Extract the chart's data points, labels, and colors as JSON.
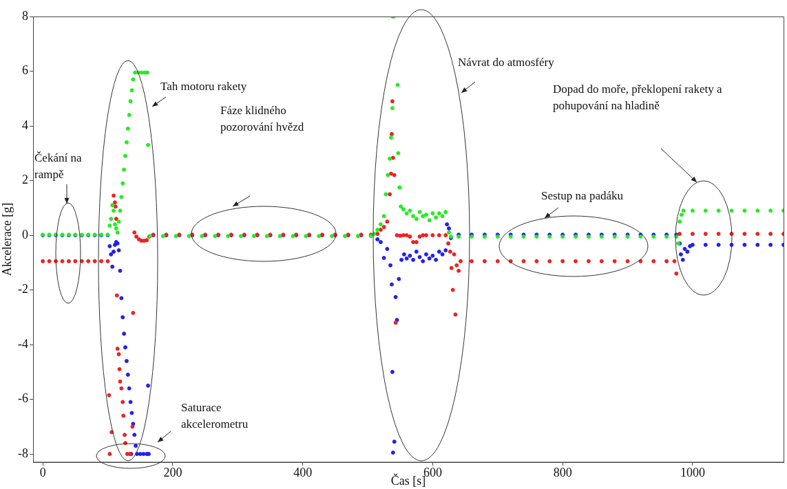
{
  "chart_data": {
    "type": "scatter",
    "xlabel": "Čas [s]",
    "ylabel": "Akcelerace [g]",
    "xlim": [
      -15,
      1140
    ],
    "ylim": [
      -8.3,
      8
    ],
    "xticks": [
      0,
      200,
      400,
      600,
      800,
      1000
    ],
    "yticks": [
      -8,
      -6,
      -4,
      -2,
      0,
      2,
      4,
      6,
      8
    ],
    "grid": false,
    "legend": false,
    "marker": "circle",
    "series": [
      {
        "color": "#22ee22",
        "x": [
          0,
          10,
          20,
          30,
          40,
          50,
          60,
          70,
          80,
          90,
          100,
          103,
          105,
          107,
          109,
          111,
          113,
          115,
          117,
          119,
          121,
          123,
          125,
          127,
          129,
          131,
          133,
          135,
          137,
          139,
          142,
          147,
          152,
          157,
          161,
          162,
          165,
          185,
          205,
          225,
          245,
          265,
          285,
          305,
          325,
          345,
          365,
          385,
          405,
          425,
          445,
          465,
          485,
          505,
          510,
          515,
          520,
          525,
          528,
          531,
          534,
          536,
          538,
          538.5,
          540,
          546,
          547,
          549,
          551,
          555,
          560,
          565,
          570,
          575,
          580,
          585,
          590,
          595,
          600,
          605,
          610,
          615,
          620,
          625,
          628,
          640,
          660,
          680,
          700,
          720,
          740,
          760,
          780,
          800,
          820,
          840,
          860,
          880,
          900,
          920,
          940,
          960,
          975,
          978,
          980,
          983,
          986,
          1000,
          1020,
          1040,
          1060,
          1080,
          1100,
          1120,
          1140
        ],
        "values": [
          0.02,
          0.02,
          0.02,
          0.02,
          0.02,
          0.02,
          0.02,
          0.02,
          0.02,
          0.02,
          0.02,
          0.35,
          0.6,
          1.1,
          0.9,
          0.4,
          0.25,
          0.1,
          0.5,
          0.9,
          1.4,
          1.9,
          2.4,
          2.9,
          3.4,
          3.9,
          4.4,
          4.9,
          5.3,
          5.7,
          5.95,
          5.95,
          5.95,
          5.95,
          5.95,
          3.3,
          -0.03,
          -0.03,
          -0.03,
          -0.03,
          -0.03,
          -0.03,
          -0.03,
          -0.03,
          -0.03,
          -0.03,
          -0.03,
          -0.03,
          -0.03,
          -0.03,
          -0.03,
          -0.03,
          -0.03,
          -0.03,
          0.05,
          0.2,
          0.4,
          0.7,
          1.5,
          2.2,
          2.8,
          3.57,
          4.65,
          8,
          8,
          5.5,
          3.0,
          1.75,
          1.05,
          0.95,
          0.8,
          0.9,
          0.7,
          0.6,
          0.85,
          0.7,
          0.75,
          0.55,
          0.8,
          0.65,
          0.8,
          0.7,
          0.85,
          0.1,
          -0.05,
          -0.05,
          -0.05,
          -0.05,
          -0.05,
          -0.05,
          -0.05,
          -0.05,
          -0.05,
          -0.05,
          -0.05,
          -0.05,
          -0.05,
          -0.05,
          -0.05,
          -0.05,
          -0.05,
          -0.05,
          -0.05,
          -0.3,
          0.5,
          0.75,
          0.9,
          0.9,
          0.9,
          0.9,
          0.9,
          0.9,
          0.9,
          0.9,
          0.9
        ]
      },
      {
        "color": "#ee2222",
        "x": [
          0,
          10,
          20,
          30,
          40,
          50,
          60,
          70,
          80,
          90,
          100,
          102,
          103,
          106,
          109,
          111,
          112,
          113,
          114,
          115,
          117,
          118,
          119,
          121,
          123,
          124,
          126,
          127,
          130,
          134,
          138,
          139,
          141,
          144,
          148,
          152,
          156,
          160,
          164,
          170,
          190,
          210,
          230,
          250,
          270,
          290,
          310,
          330,
          350,
          370,
          390,
          410,
          430,
          450,
          470,
          490,
          505,
          515,
          520,
          525,
          530,
          534,
          536,
          537,
          538,
          539,
          541,
          543,
          545,
          550,
          555,
          560,
          565,
          570,
          575,
          580,
          585,
          590,
          600,
          610,
          620,
          624,
          627,
          629,
          631,
          633,
          635,
          637,
          640,
          643,
          660,
          680,
          700,
          720,
          740,
          760,
          780,
          800,
          820,
          840,
          860,
          880,
          900,
          920,
          940,
          960,
          972,
          975,
          980,
          1000,
          1020,
          1040,
          1060,
          1080,
          1100,
          1120,
          1140
        ],
        "values": [
          -0.95,
          -0.95,
          -0.95,
          -0.95,
          -0.95,
          -0.95,
          -0.95,
          -0.95,
          -0.95,
          -0.95,
          -0.95,
          -5.85,
          -8.0,
          -7.2,
          1.45,
          1.2,
          1.05,
          0.6,
          -2.2,
          -4.15,
          -4.35,
          -4.9,
          -5.35,
          -5.6,
          -6.1,
          -6.6,
          -7.3,
          -7.6,
          -8.0,
          -8.0,
          -7.0,
          -2.84,
          0.1,
          -0.05,
          -0.15,
          -0.2,
          -0.2,
          -0.18,
          -0.05,
          0.02,
          0.02,
          0.02,
          0.02,
          0.02,
          0.02,
          0.02,
          0.02,
          0.02,
          0.02,
          0.02,
          0.02,
          0.02,
          0.02,
          0.02,
          0.02,
          0.02,
          0.02,
          0.05,
          0.2,
          0.3,
          0.5,
          1.5,
          2.25,
          3.7,
          4.9,
          2.83,
          2.2,
          -3.2,
          0.0,
          -0.02,
          0.0,
          0.0,
          -0.05,
          -0.25,
          -0.25,
          -0.05,
          0.0,
          0.0,
          0.0,
          0.0,
          0.0,
          -0.3,
          -0.6,
          -1.2,
          -2.0,
          -0.7,
          -2.9,
          -1.1,
          -1.3,
          -0.95,
          -0.95,
          -0.95,
          -0.95,
          -0.95,
          -0.95,
          -0.95,
          -0.95,
          -0.95,
          -0.95,
          -0.95,
          -0.95,
          -0.95,
          -0.95,
          -0.95,
          -0.95,
          -0.95,
          -0.95,
          -1.4,
          0.05,
          0.05,
          0.05,
          0.05,
          0.05,
          0.05,
          0.05,
          0.05,
          0.05
        ]
      },
      {
        "color": "#2222ee",
        "x": [
          0,
          10,
          20,
          30,
          40,
          50,
          60,
          70,
          80,
          90,
          100,
          103,
          105,
          107,
          109,
          111,
          113,
          115,
          117,
          119,
          121,
          123,
          125,
          127,
          129,
          131,
          133,
          135,
          136,
          137,
          139,
          141,
          143,
          145,
          150,
          155,
          160,
          162,
          163,
          170,
          190,
          210,
          230,
          250,
          270,
          290,
          310,
          330,
          350,
          370,
          390,
          410,
          430,
          450,
          470,
          490,
          505,
          515,
          520,
          525,
          530,
          535,
          537,
          538,
          539,
          541,
          543,
          545,
          548,
          552,
          556,
          560,
          565,
          570,
          575,
          580,
          585,
          590,
          595,
          600,
          605,
          610,
          615,
          620,
          622,
          625,
          628,
          640,
          660,
          680,
          700,
          720,
          740,
          760,
          780,
          800,
          820,
          840,
          860,
          880,
          900,
          920,
          940,
          960,
          975,
          980,
          982,
          985,
          988,
          992,
          996,
          1000,
          1020,
          1040,
          1060,
          1080,
          1100,
          1120,
          1140
        ],
        "values": [
          0,
          0,
          0,
          0,
          0,
          0,
          0,
          0,
          0,
          0,
          0,
          -0.4,
          -0.7,
          -1.15,
          -0.6,
          -0.35,
          -0.25,
          -0.3,
          -0.55,
          -1.3,
          -2.3,
          -3.0,
          -3.6,
          -4.1,
          -4.6,
          -5.1,
          -5.6,
          -6.1,
          -8,
          -6.5,
          -6.9,
          -7.3,
          -7.7,
          -8,
          -8,
          -8,
          -8,
          -5.5,
          -8,
          0,
          0,
          0,
          0,
          0,
          0,
          0,
          0,
          0,
          0,
          0,
          0,
          0,
          0,
          0,
          0,
          0,
          0,
          -0.15,
          -0.25,
          -0.83,
          -0.5,
          -1.1,
          -1.8,
          -5.0,
          -7.95,
          -7.55,
          -2.26,
          -3.1,
          -1.6,
          -0.9,
          -0.7,
          -0.85,
          -0.75,
          -0.9,
          -0.6,
          -0.8,
          -0.95,
          -0.7,
          -0.85,
          -0.75,
          -0.9,
          -0.6,
          -0.7,
          -0.55,
          0.4,
          0.25,
          -0.1,
          0.02,
          0.02,
          0.02,
          0.02,
          0.02,
          0.02,
          0.02,
          0.02,
          0.02,
          0.02,
          0.02,
          0.02,
          0.02,
          0.02,
          0.02,
          0.02,
          0.02,
          0.02,
          -0.3,
          -0.7,
          -0.9,
          -0.5,
          -0.6,
          -0.4,
          -0.35,
          -0.35,
          -0.35,
          -0.35,
          -0.35,
          -0.35,
          -0.35,
          -0.35
        ]
      }
    ],
    "annotations": [
      "Čekání na\nrampě",
      "Tah motoru rakety",
      "Fáze klidného\npozorování hvězd",
      "Návrat do atmosféry",
      "Sestup na padáku",
      "Dopad do moře, překlopení rakety a\npohupování na hladině",
      "Saturace\nakcelerometru"
    ]
  }
}
